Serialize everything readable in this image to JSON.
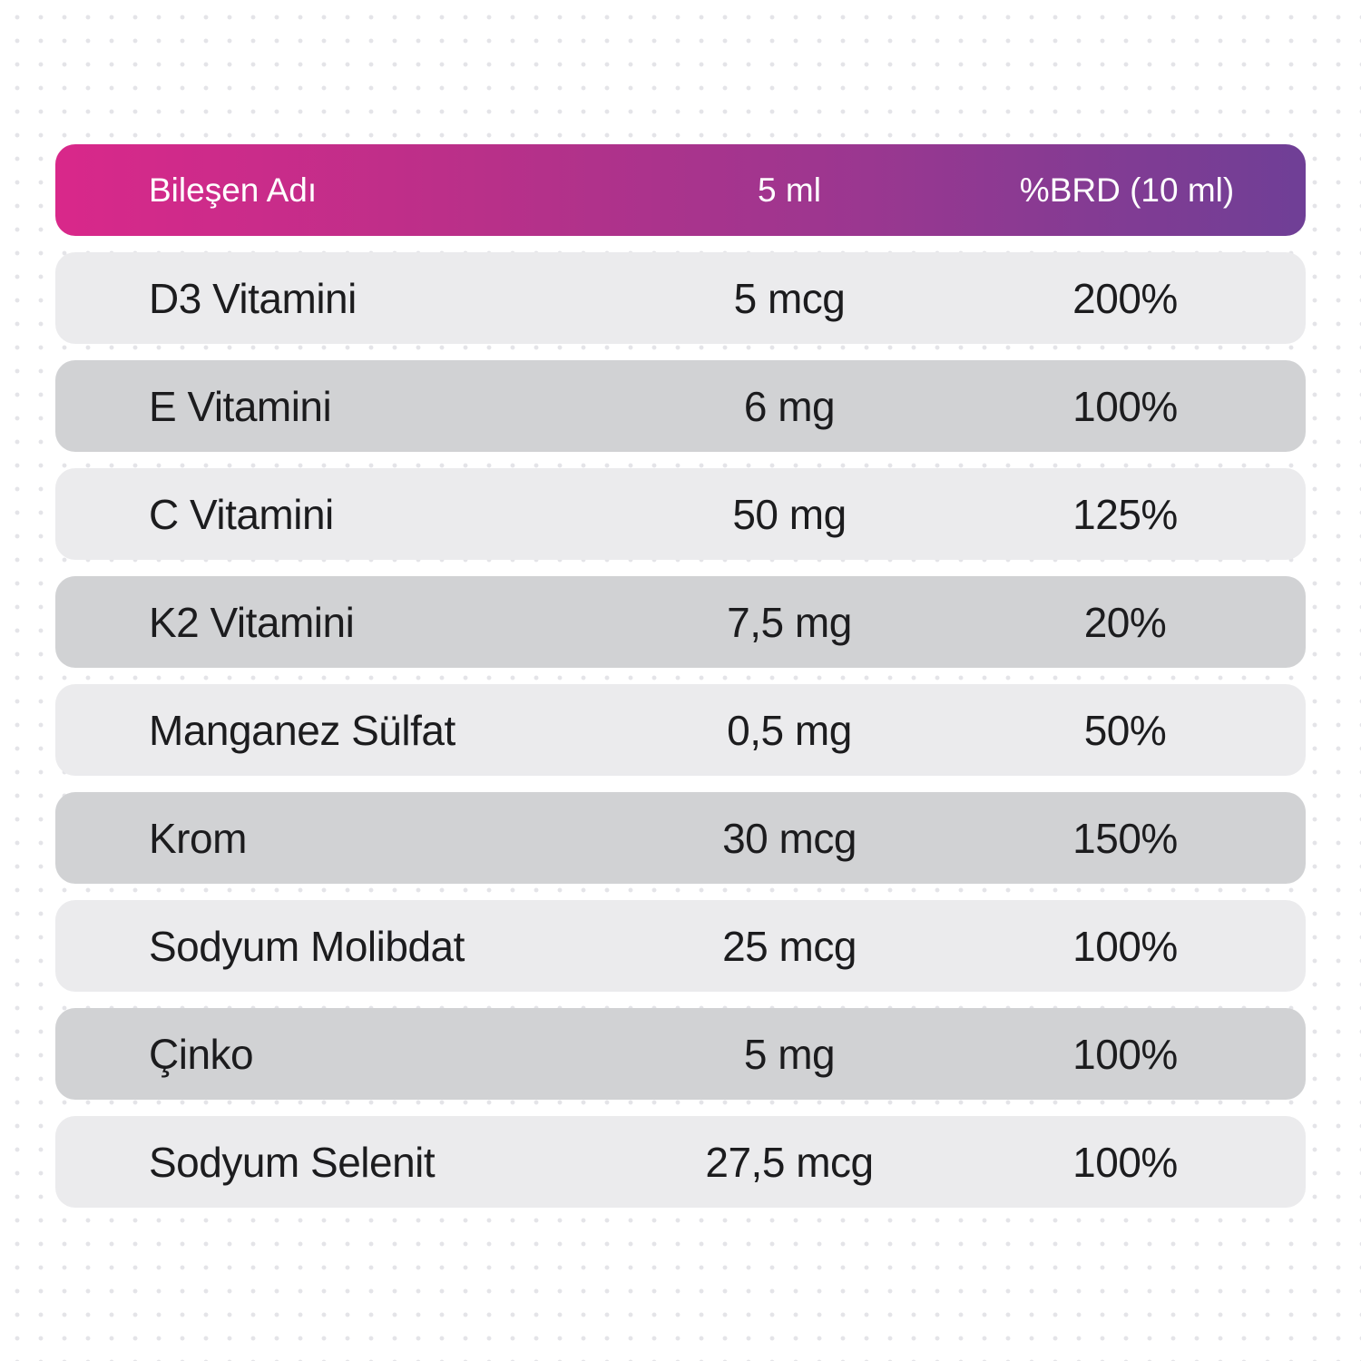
{
  "table": {
    "headers": {
      "name": "Bileşen Adı",
      "amount": "5 ml",
      "rda": "%BRD (10 ml)"
    },
    "rows": [
      {
        "name": "D3 Vitamini",
        "amount": "5 mcg",
        "rda": "200%"
      },
      {
        "name": "E Vitamini",
        "amount": "6 mg",
        "rda": "100%"
      },
      {
        "name": "C Vitamini",
        "amount": "50 mg",
        "rda": "125%"
      },
      {
        "name": "K2 Vitamini",
        "amount": "7,5 mg",
        "rda": "20%"
      },
      {
        "name": "Manganez Sülfat",
        "amount": "0,5 mg",
        "rda": "50%"
      },
      {
        "name": "Krom",
        "amount": "30 mcg",
        "rda": "150%"
      },
      {
        "name": "Sodyum Molibdat",
        "amount": "25 mcg",
        "rda": "100%"
      },
      {
        "name": "Çinko",
        "amount": "5 mg",
        "rda": "100%"
      },
      {
        "name": "Sodyum Selenit",
        "amount": "27,5 mcg",
        "rda": "100%"
      }
    ]
  },
  "colors": {
    "header_gradient_start": "#d9288a",
    "header_gradient_end": "#6f3f96",
    "row_light": "#ebebed",
    "row_dark": "#d1d2d4",
    "text": "#1c1c1e"
  }
}
